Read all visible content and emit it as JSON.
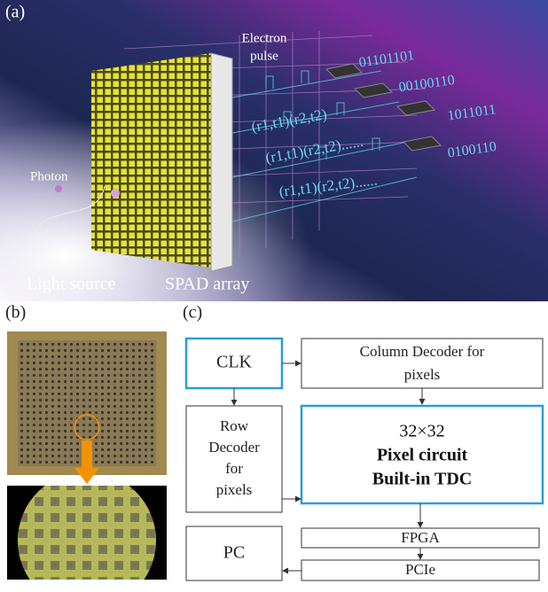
{
  "panel_a": {
    "label": "(a)",
    "electron_pulse": [
      "Electron",
      "pulse"
    ],
    "binary": [
      "01101101",
      "00100110",
      "1011011",
      "0100110"
    ],
    "tuples": [
      "(r1,t1)(r2,t2)",
      "(r1,t1)(r2,t2)......",
      "(r1,t1)(r2,t2)......"
    ],
    "photon": "Photon",
    "light_source": "Light source",
    "spad_array": "SPAD array"
  },
  "panel_b": {
    "label": "(b)"
  },
  "panel_c": {
    "label": "(c)",
    "clk": "CLK",
    "column_decoder": [
      "Column Decoder for",
      "pixels"
    ],
    "row_decoder": [
      "Row",
      "Decoder",
      "for",
      "pixels"
    ],
    "pixel_circuit": [
      "32×32",
      "Pixel circuit",
      "Built-in TDC"
    ],
    "fpga": "FPGA",
    "pcie": "PCIe",
    "pc": "PC"
  }
}
